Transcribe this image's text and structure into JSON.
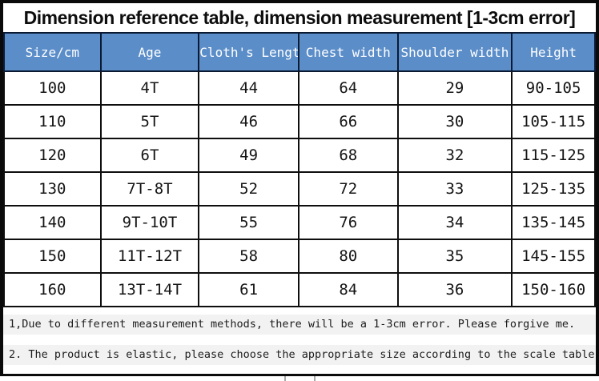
{
  "title": "Dimension reference table, dimension measurement [1-3cm error]",
  "table": {
    "columns": [
      "Size/cm",
      "Age",
      "Cloth's Length",
      "Chest width",
      "Shoulder width",
      "Height"
    ],
    "rows": [
      [
        "100",
        "4T",
        "44",
        "64",
        "29",
        "90-105"
      ],
      [
        "110",
        "5T",
        "46",
        "66",
        "30",
        "105-115"
      ],
      [
        "120",
        "6T",
        "49",
        "68",
        "32",
        "115-125"
      ],
      [
        "130",
        "7T-8T",
        "52",
        "72",
        "33",
        "125-135"
      ],
      [
        "140",
        "9T-10T",
        "55",
        "76",
        "34",
        "135-145"
      ],
      [
        "150",
        "11T-12T",
        "58",
        "80",
        "35",
        "145-155"
      ],
      [
        "160",
        "13T-14T",
        "61",
        "84",
        "36",
        "150-160"
      ]
    ]
  },
  "notes": [
    "1,Due to different measurement methods, there will be a 1-3cm error. Please forgive me.",
    "2. The product is elastic, please choose the appropriate size according to the scale table."
  ],
  "colors": {
    "header_bg": "#5B8DC9",
    "header_text": "#FFFFFF",
    "border": "#0A0A0A",
    "note_bg": "#F2F2F2"
  }
}
